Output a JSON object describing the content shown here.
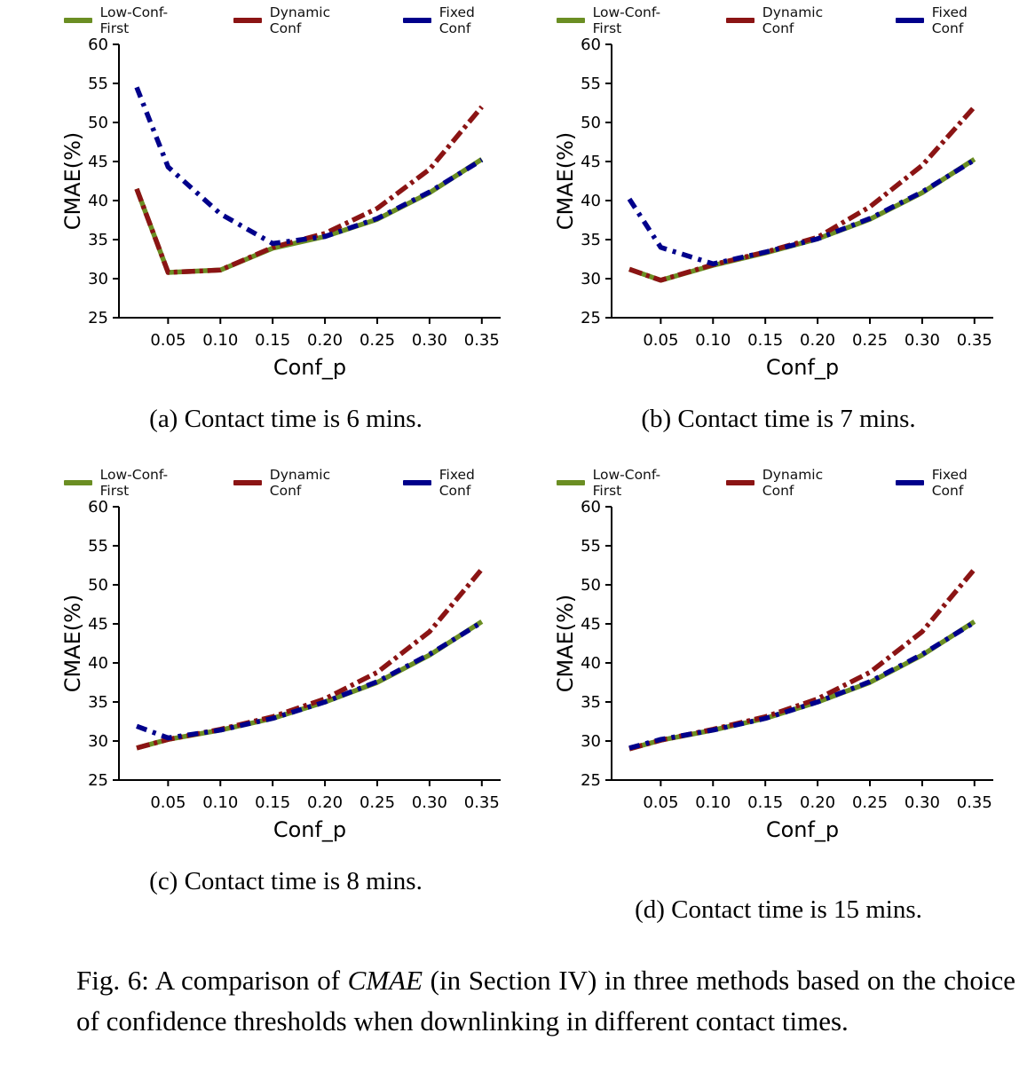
{
  "figure_caption": {
    "prefix": "Fig. 6: A comparison of ",
    "emphasis": "CMAE",
    "suffix": " (in Section IV) in three methods based on the choice of confidence thresholds when downlinking in different contact times."
  },
  "colors": {
    "low_conf_first": "#6b8e23",
    "dynamic_conf": "#8b1414",
    "fixed_conf": "#00008b"
  },
  "chart_data": [
    {
      "id": "a",
      "type": "line",
      "caption": "(a) Contact time is 6 mins.",
      "xlabel": "Conf_p",
      "ylabel": "CMAE(%)",
      "xlim": [
        0.003,
        0.368
      ],
      "ylim": [
        25,
        60
      ],
      "xticks": [
        0.05,
        0.1,
        0.15,
        0.2,
        0.25,
        0.3,
        0.35
      ],
      "xtick_labels": [
        "0.05",
        "0.10",
        "0.15",
        "0.20",
        "0.25",
        "0.30",
        "0.35"
      ],
      "yticks": [
        25,
        30,
        35,
        40,
        45,
        50,
        55,
        60
      ],
      "x": [
        0.02,
        0.05,
        0.1,
        0.15,
        0.2,
        0.25,
        0.3,
        0.35
      ],
      "legend_position": "top",
      "grid": false,
      "series": [
        {
          "name": "Low-Conf-First",
          "color": "#6b8e23",
          "linestyle": "solid",
          "values": [
            41.5,
            30.8,
            31.1,
            33.9,
            35.4,
            37.6,
            41.0,
            45.3
          ]
        },
        {
          "name": "Dynamic Conf",
          "color": "#8b1414",
          "linestyle": "dashdot",
          "values": [
            41.5,
            30.8,
            31.1,
            34.0,
            35.8,
            39.0,
            44.0,
            52.0
          ]
        },
        {
          "name": "Fixed Conf",
          "color": "#00008b",
          "linestyle": "dashdot",
          "values": [
            54.5,
            44.3,
            38.3,
            34.5,
            35.4,
            37.7,
            41.1,
            45.2
          ]
        }
      ]
    },
    {
      "id": "b",
      "type": "line",
      "caption": "(b) Contact time is 7 mins.",
      "xlabel": "Conf_p",
      "ylabel": "CMAE(%)",
      "xlim": [
        0.003,
        0.368
      ],
      "ylim": [
        25,
        60
      ],
      "xticks": [
        0.05,
        0.1,
        0.15,
        0.2,
        0.25,
        0.3,
        0.35
      ],
      "xtick_labels": [
        "0.05",
        "0.10",
        "0.15",
        "0.20",
        "0.25",
        "0.30",
        "0.35"
      ],
      "yticks": [
        25,
        30,
        35,
        40,
        45,
        50,
        55,
        60
      ],
      "x": [
        0.02,
        0.05,
        0.1,
        0.15,
        0.2,
        0.25,
        0.3,
        0.35
      ],
      "legend_position": "top",
      "grid": false,
      "series": [
        {
          "name": "Low-Conf-First",
          "color": "#6b8e23",
          "linestyle": "solid",
          "values": [
            31.2,
            29.8,
            31.7,
            33.3,
            35.1,
            37.6,
            41.0,
            45.3
          ]
        },
        {
          "name": "Dynamic Conf",
          "color": "#8b1414",
          "linestyle": "dashdot",
          "values": [
            31.2,
            29.8,
            31.8,
            33.4,
            35.3,
            39.2,
            44.5,
            52.0
          ]
        },
        {
          "name": "Fixed Conf",
          "color": "#00008b",
          "linestyle": "dashdot",
          "values": [
            40.2,
            34.0,
            31.9,
            33.4,
            35.1,
            37.7,
            41.1,
            45.2
          ]
        }
      ]
    },
    {
      "id": "c",
      "type": "line",
      "caption": "(c) Contact time is 8 mins.",
      "xlabel": "Conf_p",
      "ylabel": "CMAE(%)",
      "xlim": [
        0.003,
        0.368
      ],
      "ylim": [
        25,
        60
      ],
      "xticks": [
        0.05,
        0.1,
        0.15,
        0.2,
        0.25,
        0.3,
        0.35
      ],
      "xtick_labels": [
        "0.05",
        "0.10",
        "0.15",
        "0.20",
        "0.25",
        "0.30",
        "0.35"
      ],
      "yticks": [
        25,
        30,
        35,
        40,
        45,
        50,
        55,
        60
      ],
      "x": [
        0.02,
        0.05,
        0.1,
        0.15,
        0.2,
        0.25,
        0.3,
        0.35
      ],
      "legend_position": "top",
      "grid": false,
      "series": [
        {
          "name": "Low-Conf-First",
          "color": "#6b8e23",
          "linestyle": "solid",
          "values": [
            29.1,
            30.2,
            31.4,
            32.9,
            35.0,
            37.5,
            41.0,
            45.3
          ]
        },
        {
          "name": "Dynamic Conf",
          "color": "#8b1414",
          "linestyle": "dashdot",
          "values": [
            29.1,
            30.2,
            31.5,
            33.1,
            35.4,
            38.8,
            44.0,
            52.0
          ]
        },
        {
          "name": "Fixed Conf",
          "color": "#00008b",
          "linestyle": "dashdot",
          "values": [
            31.9,
            30.4,
            31.4,
            32.9,
            35.0,
            37.6,
            41.1,
            45.2
          ]
        }
      ]
    },
    {
      "id": "d",
      "type": "line",
      "caption": "(d) Contact time is 15 mins.",
      "xlabel": "Conf_p",
      "ylabel": "CMAE(%)",
      "xlim": [
        0.003,
        0.368
      ],
      "ylim": [
        25,
        60
      ],
      "xticks": [
        0.05,
        0.1,
        0.15,
        0.2,
        0.25,
        0.3,
        0.35
      ],
      "xtick_labels": [
        "0.05",
        "0.10",
        "0.15",
        "0.20",
        "0.25",
        "0.30",
        "0.35"
      ],
      "yticks": [
        25,
        30,
        35,
        40,
        45,
        50,
        55,
        60
      ],
      "x": [
        0.02,
        0.05,
        0.1,
        0.15,
        0.2,
        0.25,
        0.3,
        0.35
      ],
      "legend_position": "top",
      "grid": false,
      "series": [
        {
          "name": "Low-Conf-First",
          "color": "#6b8e23",
          "linestyle": "solid",
          "values": [
            29.0,
            30.1,
            31.4,
            32.9,
            35.0,
            37.5,
            41.0,
            45.3
          ]
        },
        {
          "name": "Dynamic Conf",
          "color": "#8b1414",
          "linestyle": "dashdot",
          "values": [
            29.0,
            30.1,
            31.5,
            33.1,
            35.4,
            38.8,
            44.0,
            52.0
          ]
        },
        {
          "name": "Fixed Conf",
          "color": "#00008b",
          "linestyle": "dashdot",
          "values": [
            29.1,
            30.2,
            31.4,
            32.9,
            35.0,
            37.6,
            41.1,
            45.2
          ]
        }
      ]
    }
  ]
}
